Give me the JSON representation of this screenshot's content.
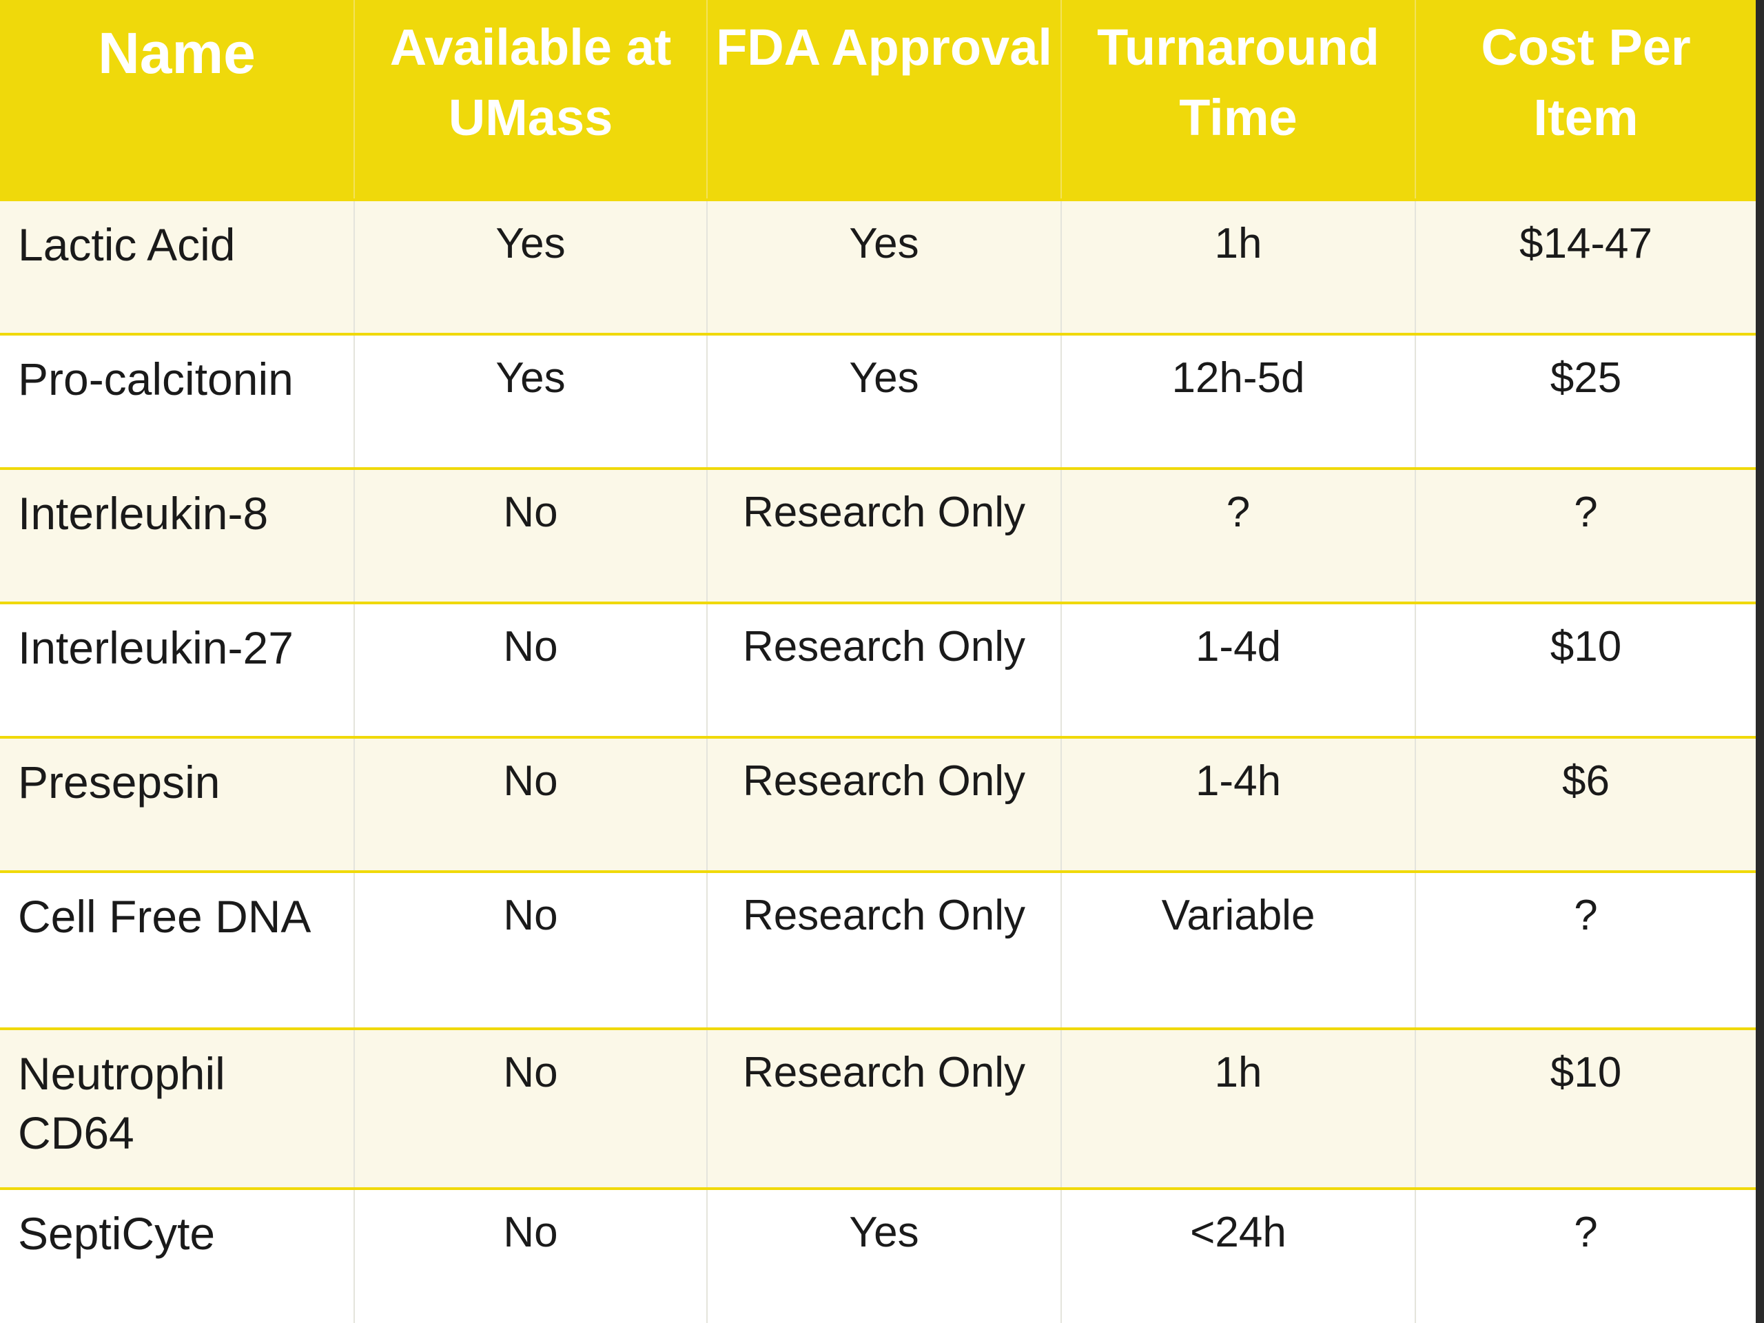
{
  "table": {
    "headers": {
      "name": "Name",
      "umass": "Available at UMass",
      "fda": "FDA Approval",
      "time": "Turnaround Time",
      "cost": "Cost Per Item"
    },
    "rows": [
      {
        "name": "Lactic Acid",
        "umass": "Yes",
        "fda": "Yes",
        "time": "1h",
        "cost": "$14-47"
      },
      {
        "name": "Pro-calcitonin",
        "umass": "Yes",
        "fda": "Yes",
        "time": "12h-5d",
        "cost": "$25"
      },
      {
        "name": "Interleukin-8",
        "umass": "No",
        "fda": "Research Only",
        "time": "?",
        "cost": "?"
      },
      {
        "name": "Interleukin-27",
        "umass": "No",
        "fda": "Research Only",
        "time": "1-4d",
        "cost": "$10"
      },
      {
        "name": "Presepsin",
        "umass": "No",
        "fda": "Research Only",
        "time": "1-4h",
        "cost": "$6"
      },
      {
        "name": "Cell Free DNA",
        "umass": "No",
        "fda": "Research Only",
        "time": "Variable",
        "cost": "?"
      },
      {
        "name": "Neutrophil CD64",
        "umass": "No",
        "fda": "Research Only",
        "time": "1h",
        "cost": "$10"
      },
      {
        "name": "SeptiCyte",
        "umass": "No",
        "fda": "Yes",
        "time": "<24h",
        "cost": "?"
      }
    ]
  },
  "colors": {
    "header_bg": "#efd90b",
    "header_text": "#ffffff",
    "row_odd_bg": "#fbf8e8",
    "row_even_bg": "#ffffff",
    "row_border": "#f0d90a"
  }
}
